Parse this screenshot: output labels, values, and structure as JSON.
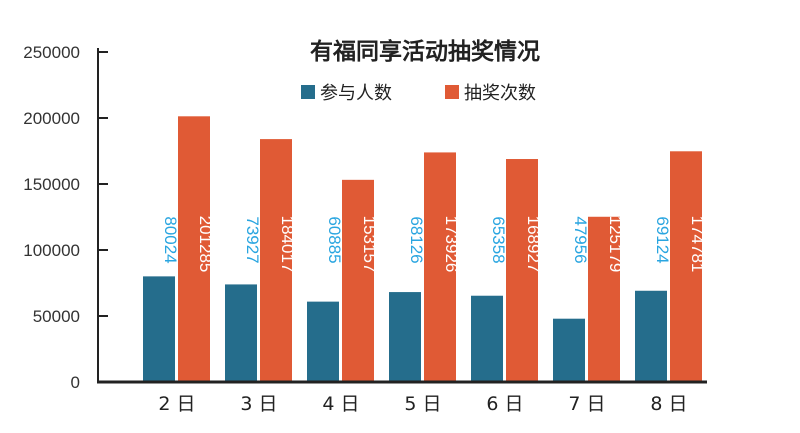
{
  "colors": {
    "series1": "#256d8c",
    "series2": "#e05a35",
    "series1_label": "#29a5e0",
    "series2_label": "#ffffff",
    "axis": "#222222"
  },
  "chart_data": {
    "type": "bar",
    "title": "有福同享活动抽奖情况",
    "xlabel": "",
    "ylabel": "",
    "categories": [
      "2 日",
      "3 日",
      "4 日",
      "5 日",
      "6 日",
      "7 日",
      "8 日"
    ],
    "series": [
      {
        "name": "参与人数",
        "values": [
          80024,
          73927,
          60885,
          68126,
          65358,
          47956,
          69124
        ]
      },
      {
        "name": "抽奖次数",
        "values": [
          201285,
          184017,
          153157,
          173926,
          168927,
          125179,
          174781
        ]
      }
    ],
    "ylim": [
      0,
      250000
    ],
    "yticks": [
      "0",
      "50000",
      "100000",
      "150000",
      "200000",
      "250000"
    ],
    "grid": false,
    "legend_position": "top-center"
  }
}
